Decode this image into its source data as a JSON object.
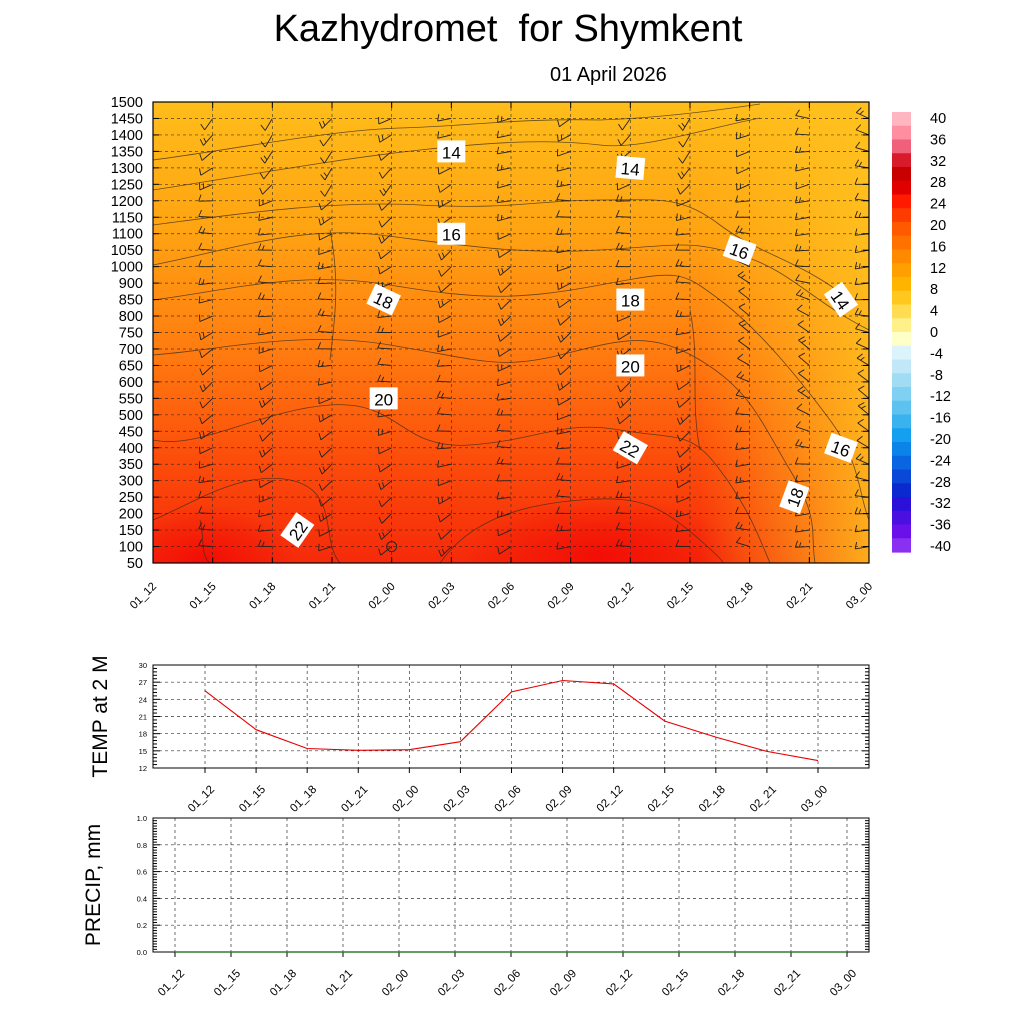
{
  "header": {
    "title": "Kazhydromet  for Shymkent",
    "date": "01 April 2026"
  },
  "chart_data": [
    {
      "type": "heatmap",
      "title": "Kazhydromet  for Shymkent",
      "subtitle": "01 April 2026",
      "x_ticks": [
        "01_12",
        "01_15",
        "01_18",
        "01_21",
        "02_00",
        "02_03",
        "02_06",
        "02_09",
        "02_12",
        "02_15",
        "02_18",
        "02_21",
        "03_00"
      ],
      "y_ticks": [
        50,
        100,
        150,
        200,
        250,
        300,
        350,
        400,
        450,
        500,
        550,
        600,
        650,
        700,
        750,
        800,
        850,
        900,
        1000,
        1050,
        1100,
        1150,
        1200,
        1250,
        1300,
        1350,
        1400,
        1450,
        1500
      ],
      "colorbar_ticks": [
        40,
        36,
        32,
        28,
        24,
        20,
        16,
        12,
        8,
        4,
        0,
        -4,
        -8,
        -12,
        -16,
        -20,
        -24,
        -28,
        -32,
        -36,
        -40
      ],
      "contour_labels": [
        {
          "text": "14",
          "x": "02_03",
          "y": 1350
        },
        {
          "text": "14",
          "x": "02_12",
          "y": 1300
        },
        {
          "text": "16",
          "x": "02_03",
          "y": 1100
        },
        {
          "text": "16",
          "x": "02_18",
          "y": 1050
        },
        {
          "text": "14",
          "x": "03_00",
          "y": 850
        },
        {
          "text": "18",
          "x": "02_00",
          "y": 850
        },
        {
          "text": "18",
          "x": "02_12",
          "y": 850
        },
        {
          "text": "20",
          "x": "02_12",
          "y": 650
        },
        {
          "text": "20",
          "x": "02_00",
          "y": 550
        },
        {
          "text": "22",
          "x": "02_12",
          "y": 400
        },
        {
          "text": "16",
          "x": "03_00",
          "y": 400
        },
        {
          "text": "18",
          "x": "02_21",
          "y": 250
        },
        {
          "text": "22",
          "x": "01_18",
          "y": 150
        }
      ]
    },
    {
      "type": "line",
      "ylabel": "TEMP at 2 M",
      "ylim": [
        12,
        30
      ],
      "y_ticks": [
        12,
        15,
        18,
        21,
        24,
        27,
        30
      ],
      "categories": [
        "01_12",
        "01_15",
        "01_18",
        "01_21",
        "02_00",
        "02_03",
        "02_06",
        "02_09",
        "02_12",
        "02_15",
        "02_18",
        "02_21",
        "03_00"
      ],
      "values": [
        25.5,
        18.7,
        15.4,
        15.1,
        15.2,
        16.6,
        25.3,
        27.3,
        26.7,
        20.2,
        17.4,
        14.9,
        13.3
      ],
      "color": "#e60000"
    },
    {
      "type": "line",
      "ylabel": "PRECIP, mm",
      "ylim": [
        0,
        1
      ],
      "y_ticks": [
        "0.0",
        "0.2",
        "0.4",
        "0.6",
        "0.8",
        "1.0"
      ],
      "categories": [
        "01_12",
        "01_15",
        "01_18",
        "01_21",
        "02_00",
        "02_03",
        "02_06",
        "02_09",
        "02_12",
        "02_15",
        "02_18",
        "02_21",
        "03_00"
      ],
      "values": [
        0,
        0,
        0,
        0,
        0,
        0,
        0,
        0,
        0,
        0,
        0,
        0,
        0
      ],
      "color": "#2e7d32"
    }
  ]
}
